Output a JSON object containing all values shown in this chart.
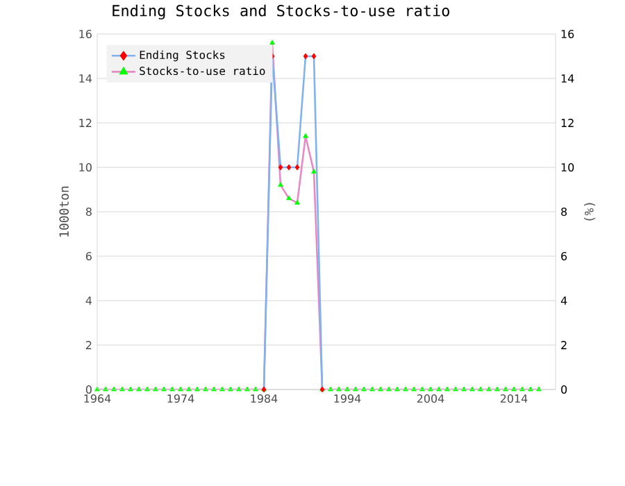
{
  "chart_data": {
    "type": "line",
    "title": "Ending Stocks and Stocks-to-use ratio",
    "ylabel": "1000ton",
    "y2label": "(%)",
    "x": [
      1964,
      1965,
      1966,
      1967,
      1968,
      1969,
      1970,
      1971,
      1972,
      1973,
      1974,
      1975,
      1976,
      1977,
      1978,
      1979,
      1980,
      1981,
      1982,
      1983,
      1984,
      1985,
      1986,
      1987,
      1988,
      1989,
      1990,
      1991,
      1992,
      1993,
      1994,
      1995,
      1996,
      1997,
      1998,
      1999,
      2000,
      2001,
      2002,
      2003,
      2004,
      2005,
      2006,
      2007,
      2008,
      2009,
      2010,
      2011,
      2012,
      2013,
      2014,
      2015,
      2016,
      2017
    ],
    "series": [
      {
        "name": "Ending Stocks",
        "color": "#7fb2ee",
        "marker": "diamond",
        "colors": [
          "#ff0000",
          "#ff0000",
          "#ff0000",
          "#ff0000",
          "#ff0000",
          "#ff0000",
          "#ff0000",
          "#ff0000",
          "#ff0000",
          "#ff0000",
          "#ff0000",
          "#ff0000",
          "#ff0000",
          "#ff0000",
          "#ff0000",
          "#ff0000",
          "#ff0000",
          "#ff0000",
          "#ff0000",
          "#ff0000",
          "#ff0000",
          "#ff0000",
          "#ff0000",
          "#ff0000",
          "#ff0000",
          "#ff0000",
          "#ff0000",
          "#ff0000",
          "#ff0000",
          "#ff0000",
          "#ff0000",
          "#ff0000",
          "#ff0000",
          "#ff0000",
          "#ff0000",
          "#ff0000",
          "#ff0000",
          "#ff0000",
          "#ff0000",
          "#ff0000",
          "#ff0000",
          "#ff0000",
          "#ff0000",
          "#ff0000",
          "#ff0000",
          "#ff0000",
          "#ff0000",
          "#ff0000",
          "#ff0000",
          "#ff0000",
          "#ff0000",
          "#ff0000",
          "#ff0000",
          "#ff0000"
        ],
        "values": [
          null,
          null,
          null,
          null,
          null,
          null,
          null,
          null,
          null,
          null,
          null,
          null,
          null,
          null,
          null,
          null,
          null,
          null,
          null,
          null,
          0,
          15,
          10,
          10,
          10,
          15,
          15,
          0,
          null,
          null,
          null,
          null,
          null,
          null,
          null,
          null,
          null,
          null,
          null,
          null,
          null,
          null,
          null,
          null,
          null,
          null,
          null,
          null,
          null,
          null,
          null,
          null,
          null,
          null
        ]
      },
      {
        "name": "Stocks-to-use ratio",
        "color": "#e68ac6",
        "marker": "triangle",
        "axis": "y2",
        "colors": [
          "#00ff00",
          "#00ff00",
          "#00ff00",
          "#00ff00",
          "#00ff00",
          "#00ff00",
          "#00ff00",
          "#00ff00",
          "#00ff00",
          "#00ff00",
          "#00ff00",
          "#00ff00",
          "#00ff00",
          "#00ff00",
          "#00ff00",
          "#00ff00",
          "#00ff00",
          "#00ff00",
          "#00ff00",
          "#00ff00",
          "#00ff00",
          "#00ff00",
          "#00ff00",
          "#00ff00",
          "#00ff00",
          "#00ff00",
          "#00ff00",
          "#00ff00",
          "#00ff00",
          "#00ff00",
          "#00ff00",
          "#00ff00",
          "#00ff00",
          "#00ff00",
          "#00ff00",
          "#00ff00",
          "#00ff00",
          "#00ff00",
          "#00ff00",
          "#00ff00",
          "#00ff00",
          "#00ff00",
          "#00ff00",
          "#00ff00",
          "#00ff00",
          "#00ff00",
          "#00ff00",
          "#00ff00",
          "#00ff00",
          "#00ff00",
          "#00ff00",
          "#00ff00",
          "#00ff00",
          "#00ff00"
        ],
        "values": [
          0,
          0,
          0,
          0,
          0,
          0,
          0,
          0,
          0,
          0,
          0,
          0,
          0,
          0,
          0,
          0,
          0,
          0,
          0,
          0,
          0,
          15.6,
          9.2,
          8.6,
          8.4,
          11.4,
          9.8,
          0,
          0,
          0,
          0,
          0,
          0,
          0,
          0,
          0,
          0,
          0,
          0,
          0,
          0,
          0,
          0,
          0,
          0,
          0,
          0,
          0,
          0,
          0,
          0,
          0,
          0,
          0
        ]
      }
    ],
    "xlim": [
      1964,
      2019
    ],
    "xticks": [
      1964,
      1974,
      1984,
      1994,
      2004,
      2014
    ],
    "ylim": [
      0,
      16
    ],
    "yticks": [
      0,
      2,
      4,
      6,
      8,
      10,
      12,
      14,
      16
    ],
    "y2lim": [
      0,
      16
    ],
    "y2ticks": [
      0,
      2,
      4,
      6,
      8,
      10,
      12,
      14,
      16
    ],
    "grid": true,
    "legend": "top left"
  }
}
